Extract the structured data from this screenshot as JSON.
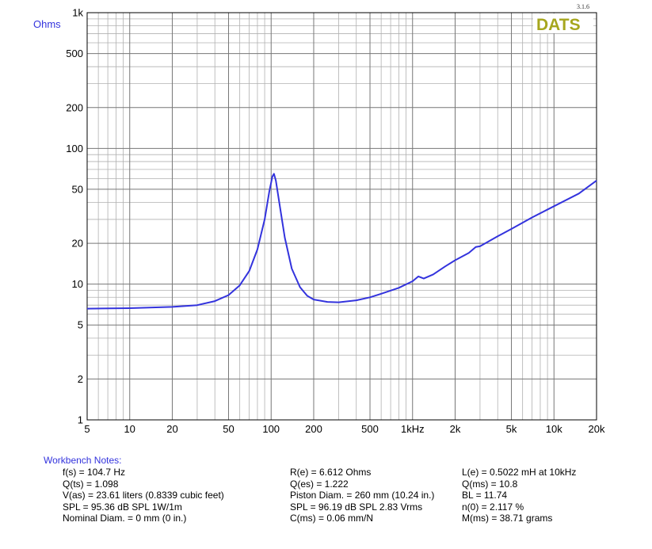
{
  "version": "3.1.6",
  "logo_text": "DATS",
  "colors": {
    "curve": "#3333dd",
    "logo": "#a6a61e",
    "grid": "#9a9a9a",
    "label_blue": "#3333dd"
  },
  "chart_data": {
    "type": "line",
    "title": "",
    "xlabel": "",
    "ylabel": "Ohms",
    "x_scale": "log",
    "y_scale": "log",
    "xlim": [
      5,
      20000
    ],
    "ylim": [
      1,
      1000
    ],
    "x_ticks": [
      {
        "v": 5,
        "label": "5"
      },
      {
        "v": 10,
        "label": "10"
      },
      {
        "v": 20,
        "label": "20"
      },
      {
        "v": 50,
        "label": "50"
      },
      {
        "v": 100,
        "label": "100"
      },
      {
        "v": 200,
        "label": "200"
      },
      {
        "v": 500,
        "label": "500"
      },
      {
        "v": 1000,
        "label": "1kHz"
      },
      {
        "v": 2000,
        "label": "2k"
      },
      {
        "v": 5000,
        "label": "5k"
      },
      {
        "v": 10000,
        "label": "10k"
      },
      {
        "v": 20000,
        "label": "20k"
      }
    ],
    "y_ticks": [
      {
        "v": 1,
        "label": "1"
      },
      {
        "v": 2,
        "label": "2"
      },
      {
        "v": 5,
        "label": "5"
      },
      {
        "v": 10,
        "label": "10"
      },
      {
        "v": 20,
        "label": "20"
      },
      {
        "v": 50,
        "label": "50"
      },
      {
        "v": 100,
        "label": "100"
      },
      {
        "v": 200,
        "label": "200"
      },
      {
        "v": 500,
        "label": "500"
      },
      {
        "v": 1000,
        "label": "1k"
      }
    ],
    "grid": true,
    "series": [
      {
        "points": [
          [
            5,
            6.6
          ],
          [
            10,
            6.65
          ],
          [
            20,
            6.8
          ],
          [
            30,
            7.0
          ],
          [
            40,
            7.5
          ],
          [
            50,
            8.3
          ],
          [
            60,
            9.8
          ],
          [
            70,
            12.5
          ],
          [
            80,
            18
          ],
          [
            90,
            30
          ],
          [
            97,
            48
          ],
          [
            102,
            62
          ],
          [
            104.7,
            65
          ],
          [
            108,
            58
          ],
          [
            115,
            38
          ],
          [
            125,
            22
          ],
          [
            140,
            13
          ],
          [
            160,
            9.5
          ],
          [
            180,
            8.2
          ],
          [
            200,
            7.7
          ],
          [
            250,
            7.4
          ],
          [
            300,
            7.35
          ],
          [
            400,
            7.6
          ],
          [
            500,
            8.0
          ],
          [
            600,
            8.5
          ],
          [
            800,
            9.4
          ],
          [
            1000,
            10.5
          ],
          [
            1100,
            11.4
          ],
          [
            1200,
            11.0
          ],
          [
            1400,
            11.8
          ],
          [
            1700,
            13.5
          ],
          [
            2000,
            15.0
          ],
          [
            2500,
            17.0
          ],
          [
            2800,
            18.8
          ],
          [
            3000,
            19.0
          ],
          [
            4000,
            22.5
          ],
          [
            5000,
            25.5
          ],
          [
            7000,
            31.0
          ],
          [
            10000,
            37.5
          ],
          [
            15000,
            46.5
          ],
          [
            20000,
            58
          ]
        ]
      }
    ]
  },
  "notes": {
    "title": "Workbench Notes:",
    "col1": [
      "f(s) = 104.7 Hz",
      "Q(ts) = 1.098",
      "V(as) = 23.61 liters  (0.8339 cubic feet)",
      "SPL = 95.36 dB SPL 1W/1m",
      "Nominal Diam. = 0 mm (0 in.)"
    ],
    "col2": [
      "R(e) = 6.612 Ohms",
      "Q(es) = 1.222",
      "Piston Diam. = 260 mm (10.24 in.)",
      "SPL = 96.19 dB SPL 2.83 Vrms",
      "C(ms) = 0.06 mm/N"
    ],
    "col3": [
      "L(e) = 0.5022 mH at 10kHz",
      "Q(ms) = 10.8",
      "BL = 11.74",
      "n(0) = 2.117 %",
      "M(ms) = 38.71 grams"
    ]
  }
}
